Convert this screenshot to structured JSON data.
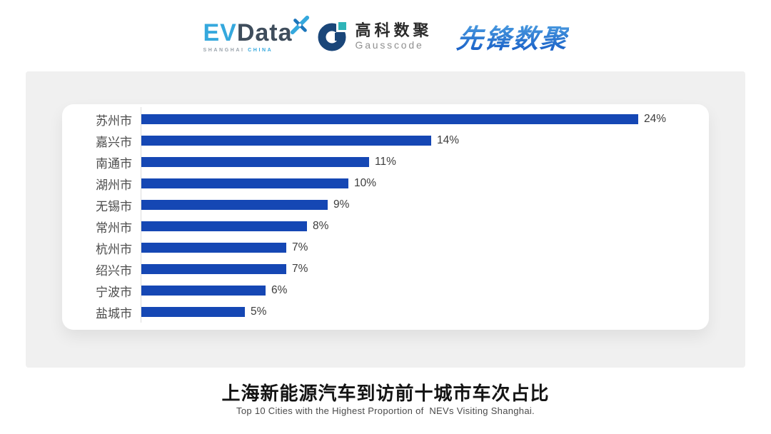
{
  "header": {
    "logos": {
      "evdata": {
        "ev": "EV",
        "data": "Data",
        "sub_left": "SHANGHAI",
        "sub_right": "CHINA",
        "star_icon": "pinwheel-star-icon",
        "ev_color": "#35A8DD",
        "data_color": "#3F4D5C"
      },
      "gausscode": {
        "cn": "高科数聚",
        "en": "Gausscode",
        "icon": "g-ring-icon",
        "navy_color": "#1A4679",
        "teal_color": "#2FB4B8"
      },
      "xianfeng": {
        "text": "先锋数聚",
        "color": "#2B79CE"
      }
    }
  },
  "chart_data": {
    "type": "bar",
    "orientation": "horizontal",
    "title": "上海新能源汽车到访前十城市车次占比",
    "subtitle": "Top 10 Cities with the Highest Proportion of  NEVs Visiting Shanghai.",
    "categories": [
      "苏州市",
      "嘉兴市",
      "南通市",
      "湖州市",
      "无锡市",
      "常州市",
      "杭州市",
      "绍兴市",
      "宁波市",
      "盐城市"
    ],
    "values": [
      24,
      14,
      11,
      10,
      9,
      8,
      7,
      7,
      6,
      5
    ],
    "value_labels": [
      "24%",
      "14%",
      "11%",
      "10%",
      "9%",
      "8%",
      "7%",
      "7%",
      "6%",
      "5%"
    ],
    "unit": "%",
    "xlim": [
      0,
      25
    ],
    "grid": false,
    "legend": "none",
    "bar_color": "#1547B4",
    "axis_line_color": "#DCDCDC",
    "label_color": "#4C4C4C",
    "panel_color": "#F0F0F0"
  },
  "footer": {
    "title": "上海新能源汽车到访前十城市车次占比",
    "subtitle": "Top 10 Cities with the Highest Proportion of  NEVs Visiting Shanghai."
  }
}
